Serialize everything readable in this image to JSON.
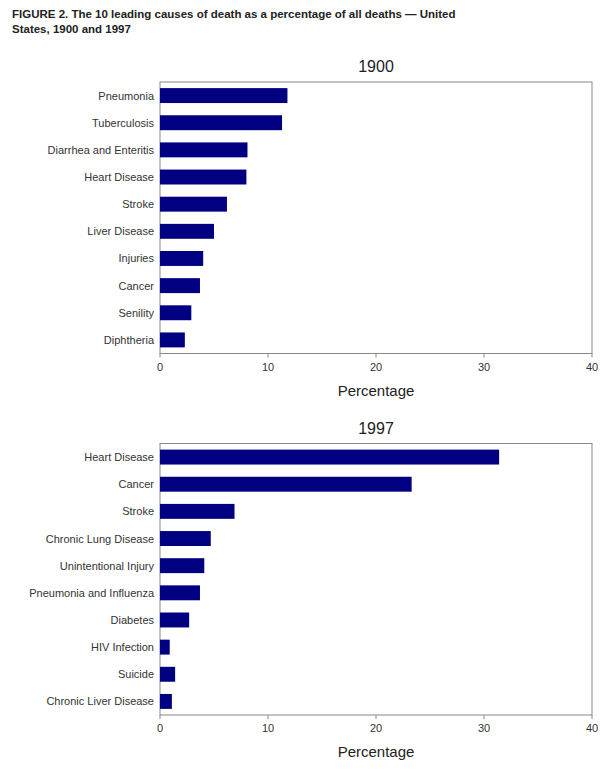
{
  "title": [
    "FIGURE 2. The 10 leading causes of death as a percentage of all deaths — United",
    "States, 1900 and 1997"
  ],
  "chart_data": [
    {
      "type": "bar",
      "orientation": "horizontal",
      "title": "1900",
      "categories": [
        "Pneumonia",
        "Tuberculosis",
        "Diarrhea and Enteritis",
        "Heart Disease",
        "Stroke",
        "Liver Disease",
        "Injuries",
        "Cancer",
        "Senility",
        "Diphtheria"
      ],
      "values": [
        11.8,
        11.3,
        8.1,
        8.0,
        6.2,
        5.0,
        4.0,
        3.7,
        2.9,
        2.3
      ],
      "color": "#000080",
      "xlim": [
        0,
        40
      ],
      "xticks": [
        0,
        10,
        20,
        30,
        40
      ],
      "xlabel": "Percentage",
      "grid": false
    },
    {
      "type": "bar",
      "orientation": "horizontal",
      "title": "1997",
      "categories": [
        "Heart Disease",
        "Cancer",
        "Stroke",
        "Chronic Lung Disease",
        "Unintentional Injury",
        "Pneumonia and Influenza",
        "Diabetes",
        "HIV Infection",
        "Suicide",
        "Chronic Liver Disease"
      ],
      "values": [
        31.4,
        23.3,
        6.9,
        4.7,
        4.1,
        3.7,
        2.7,
        0.9,
        1.4,
        1.1
      ],
      "color": "#000080",
      "xlim": [
        0,
        40
      ],
      "xticks": [
        0,
        10,
        20,
        30,
        40
      ],
      "xlabel": "Percentage",
      "grid": false
    }
  ]
}
